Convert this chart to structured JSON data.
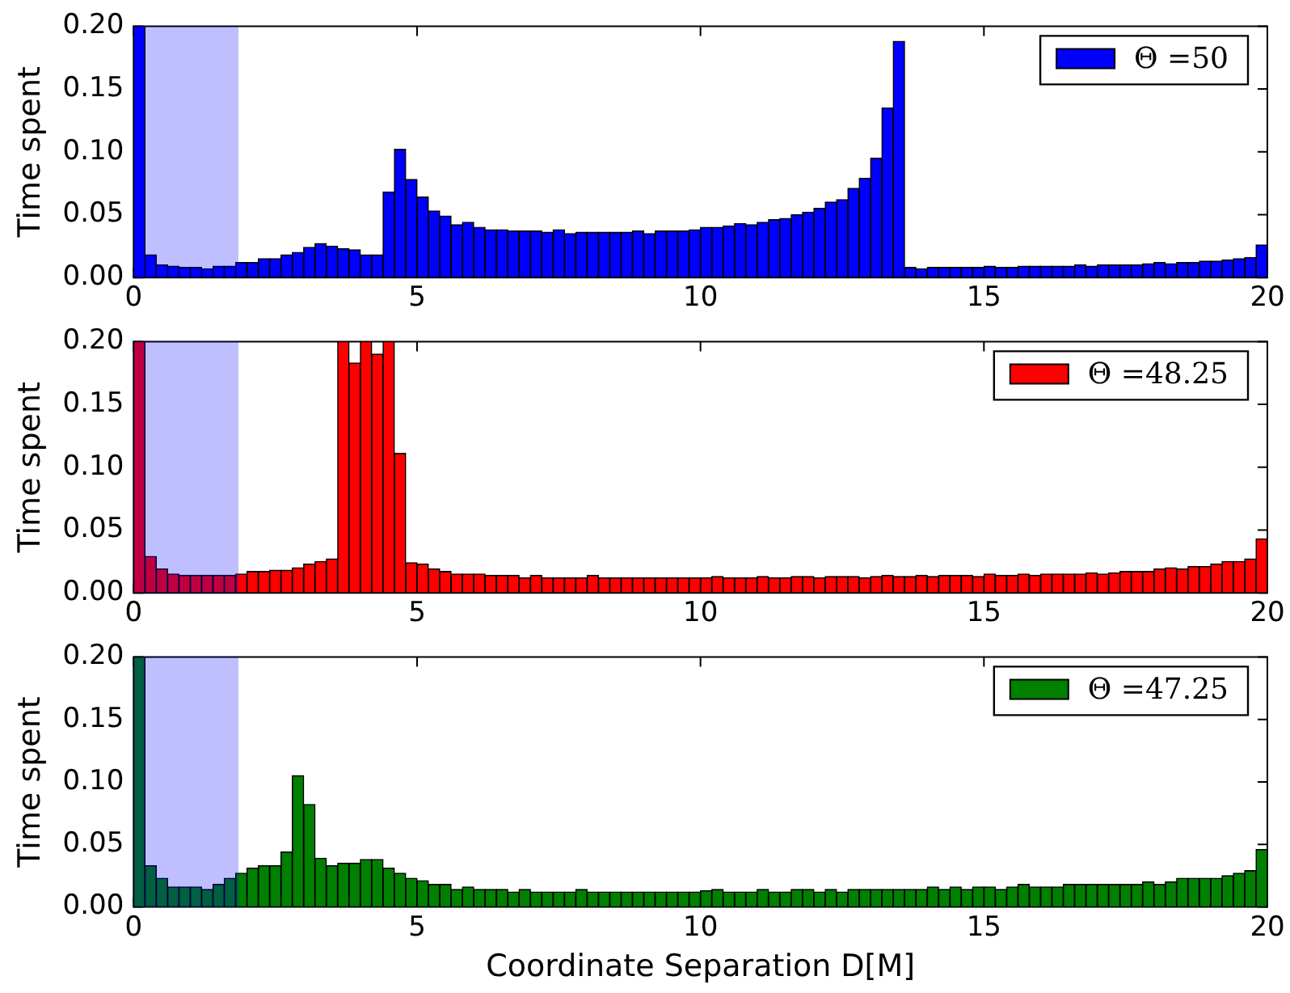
{
  "chart_data": [
    {
      "type": "histogram",
      "ylabel": "Time spent",
      "legend": "top right",
      "bins": [
        0,
        0.2,
        0.4,
        0.6,
        0.8,
        1,
        1.2,
        1.4,
        1.6,
        1.8,
        2,
        2.2,
        2.4,
        2.6,
        2.8,
        3,
        3.2,
        3.4,
        3.6,
        3.8,
        4,
        4.2,
        4.4,
        4.6,
        4.8,
        5,
        5.2,
        5.4,
        5.6,
        5.8,
        6,
        6.2,
        6.4,
        6.6,
        6.8,
        7,
        7.2,
        7.4,
        7.6,
        7.8,
        8,
        8.2,
        8.4,
        8.6,
        8.8,
        9,
        9.2,
        9.4,
        9.6,
        9.8,
        10,
        10.2,
        10.4,
        10.6,
        10.8,
        11,
        11.2,
        11.4,
        11.6,
        11.8,
        12,
        12.2,
        12.4,
        12.6,
        12.8,
        13,
        13.2,
        13.4,
        13.6,
        13.8,
        14,
        14.2,
        14.4,
        14.6,
        14.8,
        15,
        15.2,
        15.4,
        15.6,
        15.8,
        16,
        16.2,
        16.4,
        16.6,
        16.8,
        17,
        17.2,
        17.4,
        17.6,
        17.8,
        18,
        18.2,
        18.4,
        18.6,
        18.8,
        19,
        19.2,
        19.4,
        19.6,
        19.8,
        20
      ],
      "series": [
        {
          "name": "Θ =50",
          "color": "#0000ff",
          "values": [
            0.2,
            0.018,
            0.01,
            0.009,
            0.008,
            0.008,
            0.007,
            0.009,
            0.009,
            0.012,
            0.012,
            0.015,
            0.015,
            0.018,
            0.02,
            0.024,
            0.027,
            0.025,
            0.023,
            0.022,
            0.018,
            0.018,
            0.068,
            0.102,
            0.078,
            0.064,
            0.053,
            0.049,
            0.042,
            0.044,
            0.04,
            0.038,
            0.038,
            0.037,
            0.037,
            0.037,
            0.036,
            0.038,
            0.035,
            0.036,
            0.036,
            0.036,
            0.036,
            0.036,
            0.037,
            0.035,
            0.037,
            0.037,
            0.037,
            0.038,
            0.04,
            0.04,
            0.041,
            0.043,
            0.042,
            0.044,
            0.046,
            0.047,
            0.05,
            0.052,
            0.055,
            0.06,
            0.062,
            0.071,
            0.079,
            0.095,
            0.135,
            0.188,
            0.008,
            0.007,
            0.008,
            0.008,
            0.008,
            0.008,
            0.008,
            0.009,
            0.008,
            0.008,
            0.009,
            0.009,
            0.009,
            0.009,
            0.009,
            0.01,
            0.009,
            0.01,
            0.01,
            0.01,
            0.01,
            0.011,
            0.012,
            0.011,
            0.012,
            0.012,
            0.013,
            0.013,
            0.014,
            0.015,
            0.016,
            0.026
          ]
        }
      ],
      "xlim": [
        0,
        20
      ],
      "xticks": [
        0,
        5,
        10,
        15,
        20
      ],
      "ylim": [
        0,
        0.2
      ],
      "yticks": [
        {
          "value": 0,
          "label": "0.00"
        },
        {
          "value": 0.05,
          "label": "0.05"
        },
        {
          "value": 0.1,
          "label": "0.10"
        },
        {
          "value": 0.15,
          "label": "0.15"
        },
        {
          "value": 0.2,
          "label": "0.20"
        }
      ],
      "bands": [
        {
          "axis": "x",
          "from": 0,
          "to": 1.85,
          "color": "#0000ff"
        }
      ]
    },
    {
      "type": "histogram",
      "ylabel": "Time spent",
      "legend": "top right",
      "bins": [
        0,
        0.2,
        0.4,
        0.6,
        0.8,
        1,
        1.2,
        1.4,
        1.6,
        1.8,
        2,
        2.2,
        2.4,
        2.6,
        2.8,
        3,
        3.2,
        3.4,
        3.6,
        3.8,
        4,
        4.2,
        4.4,
        4.6,
        4.8,
        5,
        5.2,
        5.4,
        5.6,
        5.8,
        6,
        6.2,
        6.4,
        6.6,
        6.8,
        7,
        7.2,
        7.4,
        7.6,
        7.8,
        8,
        8.2,
        8.4,
        8.6,
        8.8,
        9,
        9.2,
        9.4,
        9.6,
        9.8,
        10,
        10.2,
        10.4,
        10.6,
        10.8,
        11,
        11.2,
        11.4,
        11.6,
        11.8,
        12,
        12.2,
        12.4,
        12.6,
        12.8,
        13,
        13.2,
        13.4,
        13.6,
        13.8,
        14,
        14.2,
        14.4,
        14.6,
        14.8,
        15,
        15.2,
        15.4,
        15.6,
        15.8,
        16,
        16.2,
        16.4,
        16.6,
        16.8,
        17,
        17.2,
        17.4,
        17.6,
        17.8,
        18,
        18.2,
        18.4,
        18.6,
        18.8,
        19,
        19.2,
        19.4,
        19.6,
        19.8,
        20
      ],
      "series": [
        {
          "name": "Θ =48.25",
          "color": "#ff0000",
          "values": [
            0.2,
            0.029,
            0.019,
            0.015,
            0.014,
            0.014,
            0.014,
            0.014,
            0.014,
            0.015,
            0.017,
            0.017,
            0.018,
            0.018,
            0.02,
            0.023,
            0.025,
            0.027,
            0.2,
            0.183,
            0.2,
            0.19,
            0.2,
            0.111,
            0.024,
            0.023,
            0.019,
            0.017,
            0.015,
            0.015,
            0.015,
            0.014,
            0.014,
            0.014,
            0.012,
            0.014,
            0.012,
            0.012,
            0.012,
            0.012,
            0.014,
            0.012,
            0.012,
            0.012,
            0.012,
            0.012,
            0.012,
            0.012,
            0.012,
            0.012,
            0.012,
            0.013,
            0.012,
            0.012,
            0.012,
            0.013,
            0.012,
            0.012,
            0.013,
            0.013,
            0.012,
            0.013,
            0.013,
            0.013,
            0.012,
            0.013,
            0.014,
            0.013,
            0.013,
            0.014,
            0.013,
            0.014,
            0.014,
            0.014,
            0.013,
            0.015,
            0.014,
            0.014,
            0.015,
            0.014,
            0.015,
            0.015,
            0.015,
            0.015,
            0.016,
            0.015,
            0.016,
            0.017,
            0.017,
            0.017,
            0.019,
            0.02,
            0.019,
            0.021,
            0.021,
            0.023,
            0.025,
            0.025,
            0.027,
            0.043
          ]
        }
      ],
      "xlim": [
        0,
        20
      ],
      "xticks": [
        0,
        5,
        10,
        15,
        20
      ],
      "ylim": [
        0,
        0.2
      ],
      "yticks": [
        {
          "value": 0,
          "label": "0.00"
        },
        {
          "value": 0.05,
          "label": "0.05"
        },
        {
          "value": 0.1,
          "label": "0.10"
        },
        {
          "value": 0.15,
          "label": "0.15"
        },
        {
          "value": 0.2,
          "label": "0.20"
        }
      ],
      "bands": [
        {
          "axis": "x",
          "from": 0,
          "to": 1.85,
          "color": "#0000ff"
        }
      ]
    },
    {
      "type": "histogram",
      "ylabel": "Time spent",
      "xlabel": "Coordinate Separation D[M]",
      "legend": "top right",
      "bins": [
        0,
        0.2,
        0.4,
        0.6,
        0.8,
        1,
        1.2,
        1.4,
        1.6,
        1.8,
        2,
        2.2,
        2.4,
        2.6,
        2.8,
        3,
        3.2,
        3.4,
        3.6,
        3.8,
        4,
        4.2,
        4.4,
        4.6,
        4.8,
        5,
        5.2,
        5.4,
        5.6,
        5.8,
        6,
        6.2,
        6.4,
        6.6,
        6.8,
        7,
        7.2,
        7.4,
        7.6,
        7.8,
        8,
        8.2,
        8.4,
        8.6,
        8.8,
        9,
        9.2,
        9.4,
        9.6,
        9.8,
        10,
        10.2,
        10.4,
        10.6,
        10.8,
        11,
        11.2,
        11.4,
        11.6,
        11.8,
        12,
        12.2,
        12.4,
        12.6,
        12.8,
        13,
        13.2,
        13.4,
        13.6,
        13.8,
        14,
        14.2,
        14.4,
        14.6,
        14.8,
        15,
        15.2,
        15.4,
        15.6,
        15.8,
        16,
        16.2,
        16.4,
        16.6,
        16.8,
        17,
        17.2,
        17.4,
        17.6,
        17.8,
        18,
        18.2,
        18.4,
        18.6,
        18.8,
        19,
        19.2,
        19.4,
        19.6,
        19.8,
        20
      ],
      "series": [
        {
          "name": "Θ =47.25",
          "color": "#008000",
          "values": [
            0.2,
            0.033,
            0.023,
            0.016,
            0.016,
            0.016,
            0.014,
            0.018,
            0.023,
            0.027,
            0.031,
            0.033,
            0.033,
            0.044,
            0.105,
            0.082,
            0.039,
            0.033,
            0.035,
            0.035,
            0.038,
            0.038,
            0.031,
            0.027,
            0.023,
            0.021,
            0.018,
            0.018,
            0.014,
            0.016,
            0.014,
            0.014,
            0.014,
            0.012,
            0.014,
            0.012,
            0.012,
            0.012,
            0.012,
            0.014,
            0.012,
            0.012,
            0.012,
            0.012,
            0.012,
            0.012,
            0.012,
            0.012,
            0.012,
            0.012,
            0.013,
            0.014,
            0.012,
            0.012,
            0.012,
            0.014,
            0.012,
            0.012,
            0.014,
            0.014,
            0.012,
            0.014,
            0.012,
            0.014,
            0.014,
            0.014,
            0.014,
            0.014,
            0.014,
            0.014,
            0.016,
            0.014,
            0.016,
            0.014,
            0.016,
            0.016,
            0.014,
            0.016,
            0.018,
            0.016,
            0.016,
            0.016,
            0.018,
            0.018,
            0.018,
            0.018,
            0.018,
            0.018,
            0.018,
            0.02,
            0.018,
            0.02,
            0.023,
            0.023,
            0.023,
            0.023,
            0.025,
            0.027,
            0.029,
            0.046
          ]
        }
      ],
      "xlim": [
        0,
        20
      ],
      "xticks": [
        0,
        5,
        10,
        15,
        20
      ],
      "ylim": [
        0,
        0.2
      ],
      "yticks": [
        {
          "value": 0,
          "label": "0.00"
        },
        {
          "value": 0.05,
          "label": "0.05"
        },
        {
          "value": 0.1,
          "label": "0.10"
        },
        {
          "value": 0.15,
          "label": "0.15"
        },
        {
          "value": 0.2,
          "label": "0.20"
        }
      ],
      "bands": [
        {
          "axis": "x",
          "from": 0,
          "to": 1.85,
          "color": "#0000ff"
        }
      ]
    }
  ]
}
